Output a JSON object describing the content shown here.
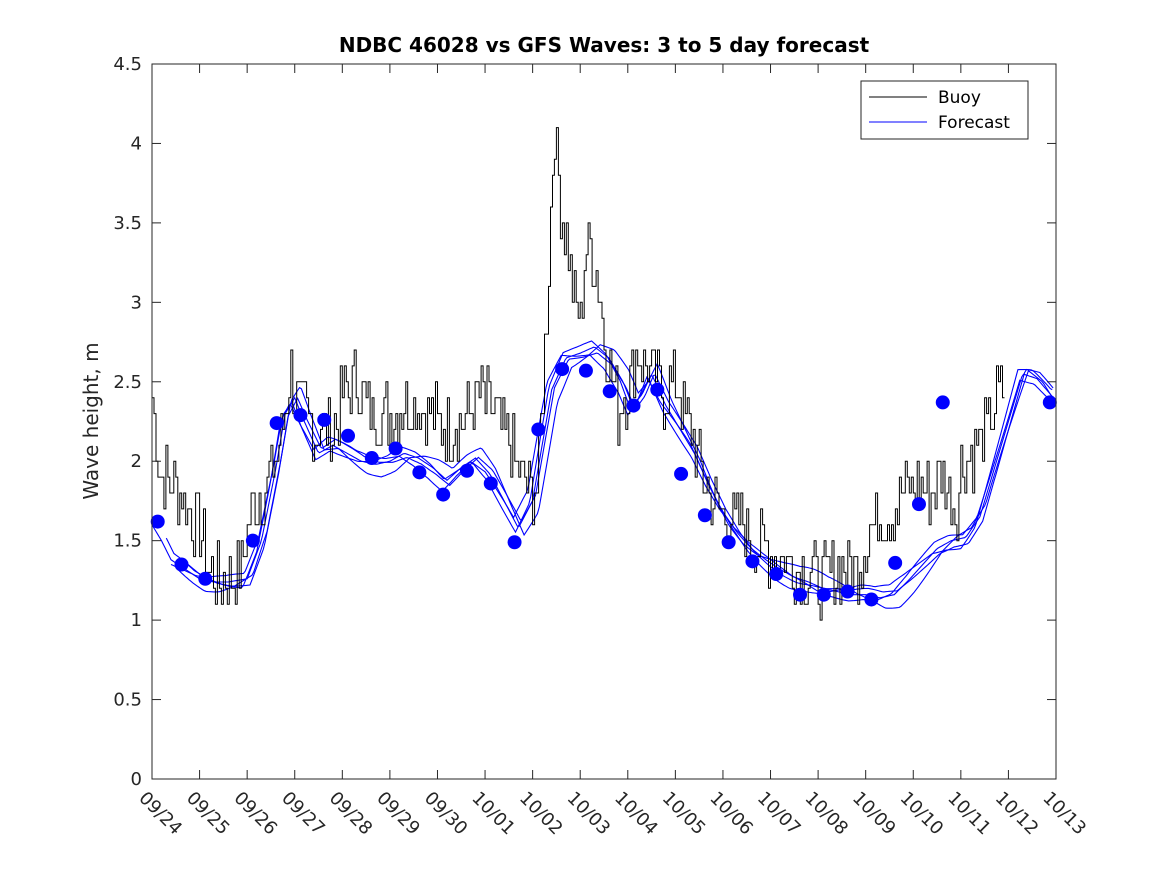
{
  "chart_data": {
    "type": "line",
    "title": "NDBC 46028 vs GFS Waves: 3 to 5 day forecast",
    "xlabel": "",
    "ylabel": "Wave height, m",
    "xlim": [
      0,
      19
    ],
    "ylim": [
      0,
      4.5
    ],
    "x_tick_labels": [
      "09/24",
      "09/25",
      "09/26",
      "09/27",
      "09/28",
      "09/29",
      "09/30",
      "10/01",
      "10/02",
      "10/03",
      "10/04",
      "10/05",
      "10/06",
      "10/07",
      "10/08",
      "10/09",
      "10/10",
      "10/11",
      "10/12",
      "10/13"
    ],
    "y_ticks": [
      0,
      0.5,
      1,
      1.5,
      2,
      2.5,
      3,
      3.5,
      4,
      4.5
    ],
    "y_tick_labels": [
      "0",
      "0.5",
      "1",
      "1.5",
      "2",
      "2.5",
      "3",
      "3.5",
      "4",
      "4.5"
    ],
    "legend": {
      "position": "top-right",
      "entries": [
        "Buoy",
        "Forecast"
      ]
    },
    "colors": {
      "buoy": "#000000",
      "forecast": "#0000ff",
      "axes": "#262626"
    },
    "buoy_anchor": {
      "x": [
        0,
        0.05,
        0.15,
        0.3,
        0.5,
        0.7,
        0.9,
        1.1,
        1.2,
        1.5,
        1.7,
        1.9,
        2.0,
        2.2,
        2.4,
        2.6,
        2.8,
        2.9,
        3.0,
        3.2,
        3.5,
        3.8,
        4.0,
        4.3,
        4.6,
        5.0,
        5.4,
        5.8,
        6.2,
        6.6,
        6.9,
        7.2,
        7.5,
        7.7,
        7.9,
        8.1,
        8.2,
        8.3,
        8.45,
        8.6,
        8.75,
        8.9,
        9.0,
        9.1,
        9.2,
        9.35,
        9.5,
        9.7,
        9.8,
        10.0,
        10.2,
        10.4,
        10.6,
        10.8,
        11.0,
        11.2,
        11.4,
        11.6,
        11.8,
        12.0,
        12.3,
        12.6,
        12.9,
        13.2,
        13.5,
        13.8,
        14.0,
        14.2,
        14.5,
        14.8,
        15.0,
        15.3,
        15.6,
        15.8,
        16.0,
        16.3,
        16.6,
        16.9,
        17.0,
        17.2,
        17.4,
        17.6,
        17.8,
        17.95
      ],
      "y": [
        2.4,
        2.3,
        1.95,
        1.9,
        1.85,
        1.75,
        1.6,
        1.5,
        1.3,
        1.25,
        1.3,
        1.35,
        1.6,
        1.75,
        1.85,
        2.0,
        2.3,
        2.6,
        2.4,
        2.3,
        2.2,
        2.2,
        2.4,
        2.5,
        2.3,
        2.3,
        2.4,
        2.3,
        2.2,
        2.3,
        2.4,
        2.3,
        2.1,
        1.95,
        1.85,
        1.8,
        2.4,
        3.0,
        4.1,
        3.6,
        3.3,
        3.0,
        2.9,
        3.3,
        3.4,
        3.2,
        2.8,
        2.45,
        2.3,
        2.5,
        2.7,
        2.6,
        2.5,
        2.4,
        2.55,
        2.3,
        2.1,
        1.9,
        1.75,
        1.7,
        1.6,
        1.55,
        1.45,
        1.4,
        1.35,
        1.3,
        1.25,
        1.3,
        1.35,
        1.3,
        1.5,
        1.7,
        1.7,
        1.8,
        1.85,
        1.8,
        1.9,
        1.7,
        1.95,
        2.05,
        2.1,
        2.25,
        2.45,
        2.5
      ]
    },
    "forecast_anchor": {
      "x": [
        0.0,
        0.2,
        0.4,
        0.7,
        1.0,
        1.3,
        1.6,
        2.0,
        2.3,
        2.6,
        2.8,
        3.0,
        3.2,
        3.5,
        3.8,
        4.1,
        4.4,
        4.7,
        5.0,
        5.3,
        5.6,
        5.9,
        6.2,
        6.5,
        6.8,
        7.1,
        7.4,
        7.7,
        8.0,
        8.2,
        8.4,
        8.7,
        9.0,
        9.3,
        9.6,
        9.9,
        10.1,
        10.3,
        10.5,
        10.8,
        11.1,
        11.4,
        11.7,
        12.0,
        12.3,
        12.6,
        12.9,
        13.2,
        13.5,
        13.8,
        14.1,
        14.4,
        14.7,
        15.0,
        15.3,
        15.6,
        15.9,
        16.2,
        16.5,
        16.8,
        17.1,
        17.4,
        17.7,
        18.0,
        18.3,
        18.6,
        19.0
      ],
      "y": [
        1.6,
        1.5,
        1.38,
        1.32,
        1.26,
        1.24,
        1.24,
        1.26,
        1.5,
        1.95,
        2.3,
        2.4,
        2.25,
        2.05,
        2.1,
        2.05,
        2.0,
        1.98,
        2.0,
        2.05,
        2.02,
        1.96,
        1.88,
        1.96,
        2.02,
        1.92,
        1.75,
        1.58,
        1.75,
        2.1,
        2.45,
        2.65,
        2.68,
        2.72,
        2.65,
        2.5,
        2.35,
        2.42,
        2.55,
        2.35,
        2.2,
        2.05,
        1.85,
        1.68,
        1.55,
        1.45,
        1.38,
        1.32,
        1.27,
        1.24,
        1.2,
        1.18,
        1.16,
        1.16,
        1.14,
        1.16,
        1.25,
        1.35,
        1.45,
        1.5,
        1.52,
        1.65,
        1.95,
        2.25,
        2.55,
        2.52,
        2.38
      ]
    },
    "forecast_offsets": [
      {
        "dx": 0.0,
        "dy": 0.0
      },
      {
        "dx": 0.06,
        "dy": 0.04
      },
      {
        "dx": -0.06,
        "dy": -0.04
      },
      {
        "dx": 0.12,
        "dy": 0.08
      },
      {
        "dx": -0.1,
        "dy": -0.07
      }
    ],
    "forecast_markers": {
      "x": [
        0.12,
        0.62,
        1.12,
        2.12,
        2.62,
        3.12,
        3.62,
        4.12,
        4.62,
        5.12,
        5.62,
        6.12,
        6.62,
        7.12,
        7.62,
        8.12,
        8.62,
        9.12,
        9.62,
        10.12,
        10.62,
        11.12,
        11.62,
        12.12,
        12.62,
        13.12,
        13.62,
        14.12,
        14.62,
        15.12,
        15.62,
        16.12,
        16.62,
        18.87
      ],
      "y": [
        1.62,
        1.35,
        1.26,
        1.5,
        2.24,
        2.29,
        2.26,
        2.16,
        2.02,
        2.08,
        1.93,
        1.79,
        1.94,
        1.86,
        1.49,
        2.2,
        2.58,
        2.57,
        2.44,
        2.35,
        2.45,
        1.92,
        1.66,
        1.49,
        1.37,
        1.29,
        1.16,
        1.16,
        1.18,
        1.13,
        1.36,
        1.73,
        2.37,
        2.37
      ]
    }
  }
}
